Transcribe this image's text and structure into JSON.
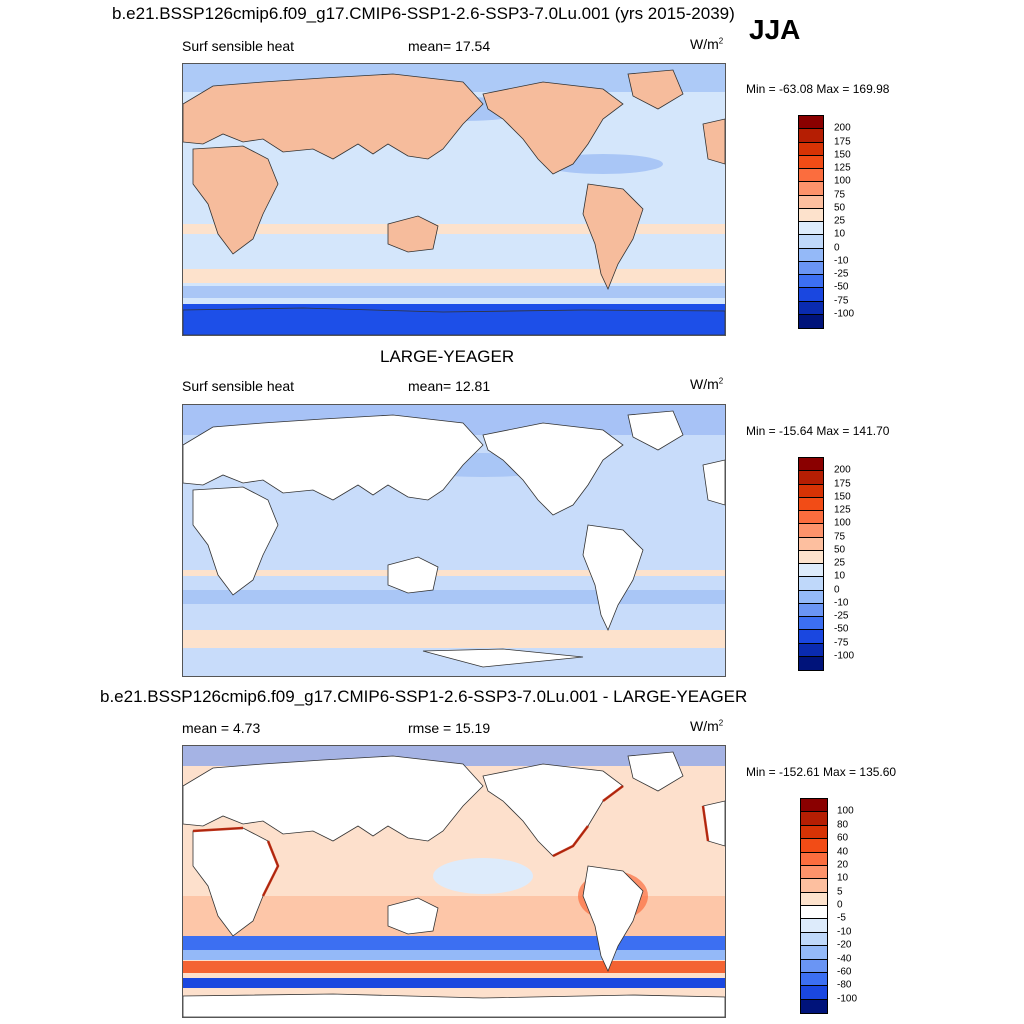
{
  "season": "JJA",
  "panels": [
    {
      "title": "b.e21.BSSP126cmip6.f09_g17.CMIP6-SSP1-2.6-SSP3-7.0Lu.001 (yrs 2015-2039)",
      "left_label": "Surf sensible heat",
      "center_label": "mean=  17.54",
      "units": "W/m",
      "units_sup": "2",
      "minmax": "Min = -63.08 Max = 169.98",
      "ocean": "#d4e6fb",
      "land": "#f6bc9c",
      "colorbar": {
        "labels": [
          "200",
          "175",
          "150",
          "125",
          "100",
          "75",
          "50",
          "25",
          "10",
          "0",
          "-10",
          "-25",
          "-50",
          "-75",
          "-100"
        ],
        "colors": [
          "#8a0000",
          "#b51e03",
          "#d73305",
          "#f24c16",
          "#fb6d3e",
          "#fd936b",
          "#fdbf9f",
          "#fde2cc",
          "#ddebfb",
          "#bfd8fa",
          "#94b9f8",
          "#6a95f4",
          "#3c6ff2",
          "#1a47e0",
          "#0a2bb0",
          "#00137a"
        ]
      }
    },
    {
      "title": "LARGE-YEAGER",
      "left_label": "Surf sensible heat",
      "center_label": "mean=  12.81",
      "units": "W/m",
      "units_sup": "2",
      "minmax": "Min = -15.64 Max = 141.70",
      "ocean": "#c8dcfa",
      "land": "#ffffff",
      "colorbar": {
        "labels": [
          "200",
          "175",
          "150",
          "125",
          "100",
          "75",
          "50",
          "25",
          "10",
          "0",
          "-10",
          "-25",
          "-50",
          "-75",
          "-100"
        ],
        "colors": [
          "#8a0000",
          "#b51e03",
          "#d73305",
          "#f24c16",
          "#fb6d3e",
          "#fd936b",
          "#fdbf9f",
          "#fde2cc",
          "#ddebfb",
          "#bfd8fa",
          "#94b9f8",
          "#6a95f4",
          "#3c6ff2",
          "#1a47e0",
          "#0a2bb0",
          "#00137a"
        ]
      }
    },
    {
      "title": "b.e21.BSSP126cmip6.f09_g17.CMIP6-SSP1-2.6-SSP3-7.0Lu.001 - LARGE-YEAGER",
      "left_label": "mean =   4.73",
      "center_label": "rmse =  15.19",
      "units": "W/m",
      "units_sup": "2",
      "minmax": "Min = -152.61 Max = 135.60",
      "ocean": "#fde0cc",
      "land": "#ffffff",
      "colorbar": {
        "labels": [
          "100",
          "80",
          "60",
          "40",
          "20",
          "10",
          "5",
          "0",
          "-5",
          "-10",
          "-20",
          "-40",
          "-60",
          "-80",
          "-100"
        ],
        "colors": [
          "#8a0000",
          "#b51e03",
          "#d73305",
          "#f24c16",
          "#fb6d3e",
          "#fd936b",
          "#fdbf9f",
          "#fde2cc",
          "#ffffff",
          "#ddebfb",
          "#bfd8fa",
          "#94b9f8",
          "#6a95f4",
          "#3c6ff2",
          "#1a47e0",
          "#00137a"
        ]
      }
    }
  ]
}
